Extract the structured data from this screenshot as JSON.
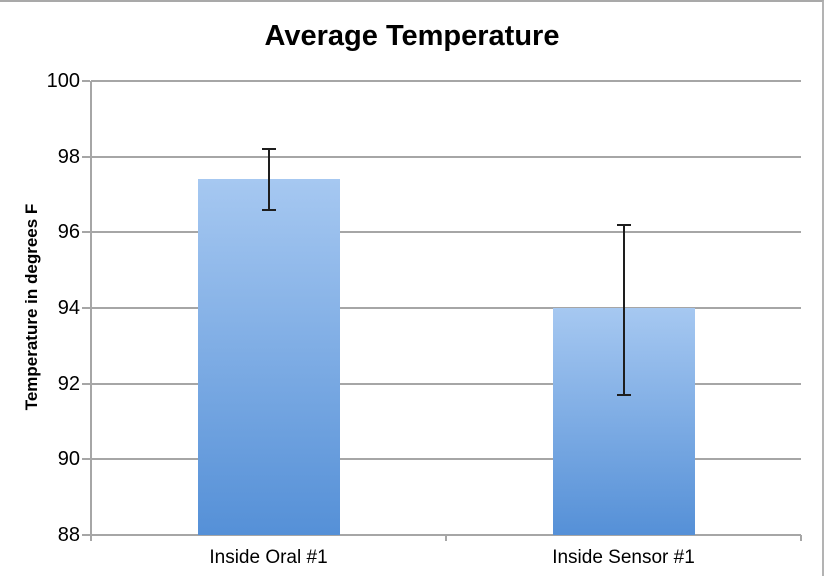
{
  "chart_data": {
    "type": "bar",
    "title": "Average Temperature",
    "xlabel": "",
    "ylabel": "Temperature in degrees F",
    "categories": [
      "Inside Oral #1",
      "Inside Sensor #1"
    ],
    "values": [
      97.4,
      94.0
    ],
    "error_bars": [
      {
        "high": 98.2,
        "low": 96.6
      },
      {
        "high": 96.2,
        "low": 91.7
      }
    ],
    "ylim": [
      88,
      100
    ],
    "yticks": [
      88,
      90,
      92,
      94,
      96,
      98,
      100
    ],
    "grid": true,
    "legend": "none",
    "colors": {
      "bar_gradient_top": "#a6c8f1",
      "bar_gradient_bottom": "#5590d7",
      "gridline": "#a6a6a6",
      "axis_line": "#a6a6a6",
      "error_bar": "#1e1e1e",
      "text": "#000000",
      "background": "#ffffff"
    }
  }
}
